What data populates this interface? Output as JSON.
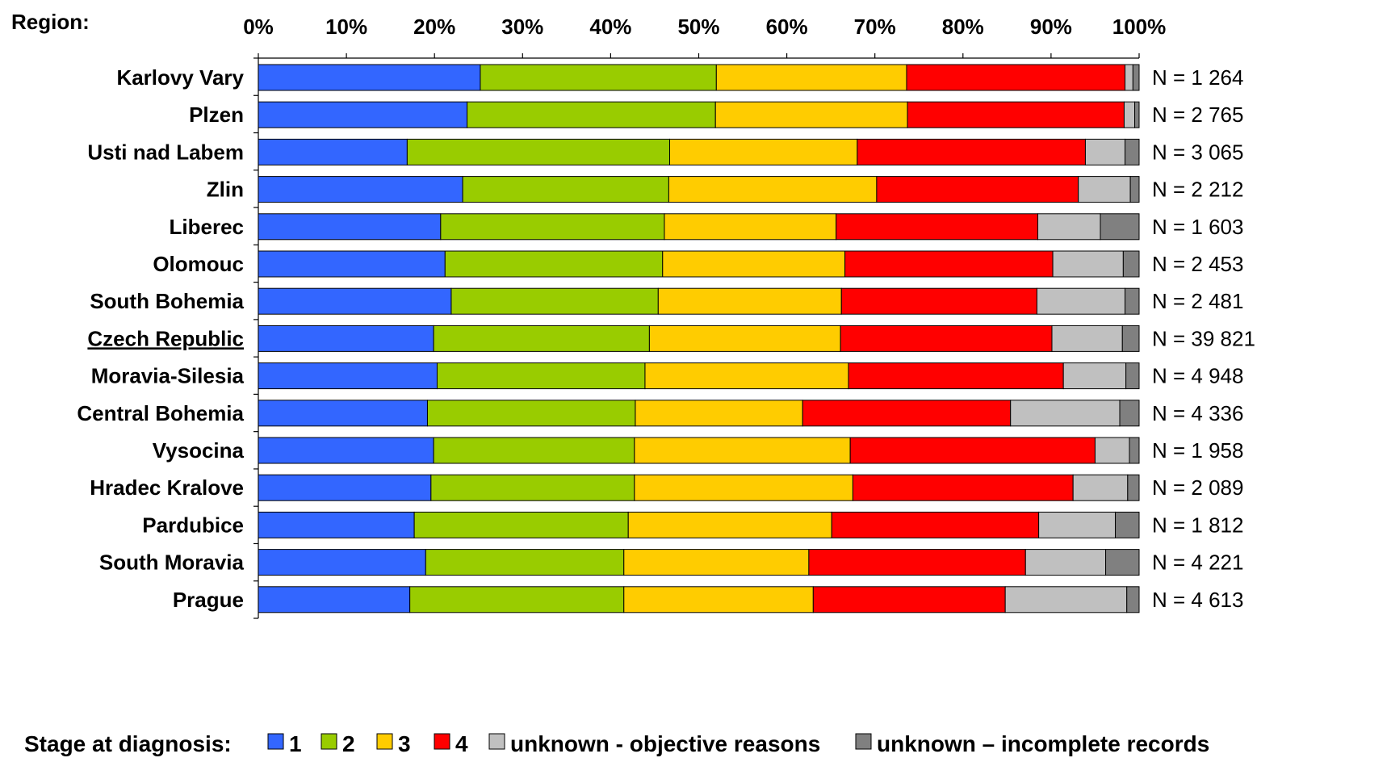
{
  "chart_data": {
    "type": "bar",
    "orientation": "horizontal",
    "stacked": "percent",
    "region_axis_title": "Region:",
    "x_ticks": [
      "0%",
      "10%",
      "20%",
      "30%",
      "40%",
      "50%",
      "60%",
      "70%",
      "80%",
      "90%",
      "100%"
    ],
    "xlim": [
      0,
      100
    ],
    "x_axis_position": "top",
    "grid": false,
    "categories": [
      "Karlovy Vary",
      "Plzen",
      "Usti nad Labem",
      "Zlin",
      "Liberec",
      "Olomouc",
      "South Bohemia",
      "Czech Republic",
      "Moravia-Silesia",
      "Central Bohemia",
      "Vysocina",
      "Hradec Kralove",
      "Pardubice",
      "South Moravia",
      "Prague"
    ],
    "highlighted_category": "Czech Republic",
    "n_labels": [
      "N = 1 264",
      "N = 2 765",
      "N = 3 065",
      "N = 2 212",
      "N = 1 603",
      "N = 2 453",
      "N = 2 481",
      "N = 39 821",
      "N = 4 948",
      "N = 4 336",
      "N = 1 958",
      "N = 2 089",
      "N = 1 812",
      "N = 4 221",
      "N = 4 613"
    ],
    "series": [
      {
        "name": "1",
        "color": "#3366ff",
        "values": [
          25.2,
          23.7,
          16.9,
          23.2,
          20.7,
          21.2,
          21.9,
          19.9,
          20.3,
          19.2,
          19.9,
          19.6,
          17.7,
          19.0,
          17.2
        ]
      },
      {
        "name": "2",
        "color": "#99cc00",
        "values": [
          26.8,
          28.2,
          29.8,
          23.4,
          25.4,
          24.7,
          23.5,
          24.5,
          23.6,
          23.6,
          22.8,
          23.1,
          24.3,
          22.5,
          24.3
        ]
      },
      {
        "name": "3",
        "color": "#ffcc00",
        "values": [
          21.6,
          21.8,
          21.3,
          23.6,
          19.5,
          20.7,
          20.8,
          21.7,
          23.1,
          19.0,
          24.5,
          24.8,
          23.1,
          21.0,
          21.5
        ]
      },
      {
        "name": "4",
        "color": "#ff0000",
        "values": [
          24.8,
          24.6,
          25.9,
          22.9,
          22.9,
          23.6,
          22.2,
          24.0,
          24.4,
          23.6,
          27.8,
          25.0,
          23.5,
          24.6,
          21.8
        ]
      },
      {
        "name": "unknown - objective reasons",
        "color": "#c0c0c0",
        "values": [
          0.9,
          1.2,
          4.5,
          5.9,
          7.1,
          8.0,
          10.0,
          8.0,
          7.1,
          12.4,
          3.9,
          6.2,
          8.7,
          9.1,
          13.8
        ]
      },
      {
        "name": "unknown – incomplete records",
        "color": "#808080",
        "values": [
          0.7,
          0.5,
          1.6,
          1.0,
          4.4,
          1.8,
          1.6,
          1.9,
          1.5,
          2.2,
          1.1,
          1.3,
          2.7,
          3.8,
          1.4
        ]
      }
    ],
    "legend": {
      "title": "Stage at diagnosis:",
      "placement": "bottom",
      "entries": [
        "1",
        "2",
        "3",
        "4",
        "unknown - objective reasons",
        "unknown – incomplete records"
      ]
    }
  }
}
